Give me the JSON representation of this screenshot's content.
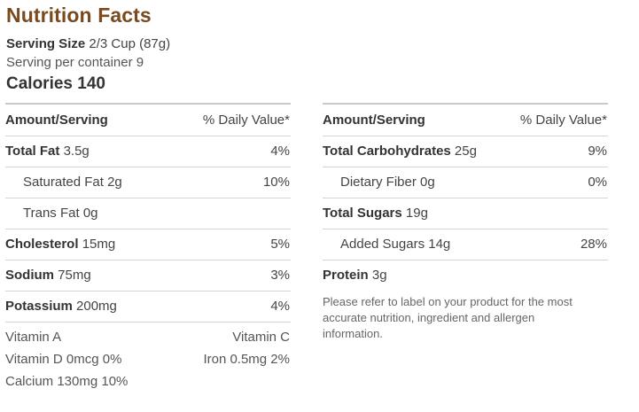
{
  "header": {
    "title": "Nutrition Facts",
    "serving_size_label": "Serving Size",
    "serving_size_value": "2/3 Cup (87g)",
    "serving_per_container": "Serving per container 9",
    "calories_label": "Calories",
    "calories_value": "140"
  },
  "left_table": {
    "head_left": "Amount/Serving",
    "head_right": "% Daily Value*",
    "rows": [
      {
        "name": "Total Fat",
        "amount": "3.5g",
        "dv": "4%"
      },
      {
        "name": "Saturated Fat",
        "amount": "2g",
        "dv": "10%"
      },
      {
        "name": "Trans Fat",
        "amount": "0g",
        "dv": ""
      },
      {
        "name": "Cholesterol",
        "amount": "15mg",
        "dv": "5%"
      },
      {
        "name": "Sodium",
        "amount": "75mg",
        "dv": "3%"
      },
      {
        "name": "Potassium",
        "amount": "200mg",
        "dv": "4%"
      }
    ]
  },
  "right_table": {
    "head_left": "Amount/Serving",
    "head_right": "% Daily Value*",
    "rows": [
      {
        "name": "Total Carbohydrates",
        "amount": "25g",
        "dv": "9%"
      },
      {
        "name": "Dietary Fiber",
        "amount": "0g",
        "dv": "0%"
      },
      {
        "name": "Total Sugars",
        "amount": "19g",
        "dv": ""
      },
      {
        "name": "Added Sugars",
        "amount": "14g",
        "dv": "28%"
      },
      {
        "name": "Protein",
        "amount": "3g",
        "dv": ""
      }
    ]
  },
  "vitamins": {
    "vitamin_a": "Vitamin A",
    "vitamin_c": "Vitamin C",
    "vitamin_d": "Vitamin D 0mcg 0%",
    "iron": "Iron 0.5mg 2%",
    "calcium": "Calcium 130mg 10%"
  },
  "note": "Please refer to label on your product for the most accurate nutrition, ingredient and allergen information.",
  "colors": {
    "title": "#7a4a1e",
    "text": "#444444",
    "rule": "#d4d4d4"
  }
}
